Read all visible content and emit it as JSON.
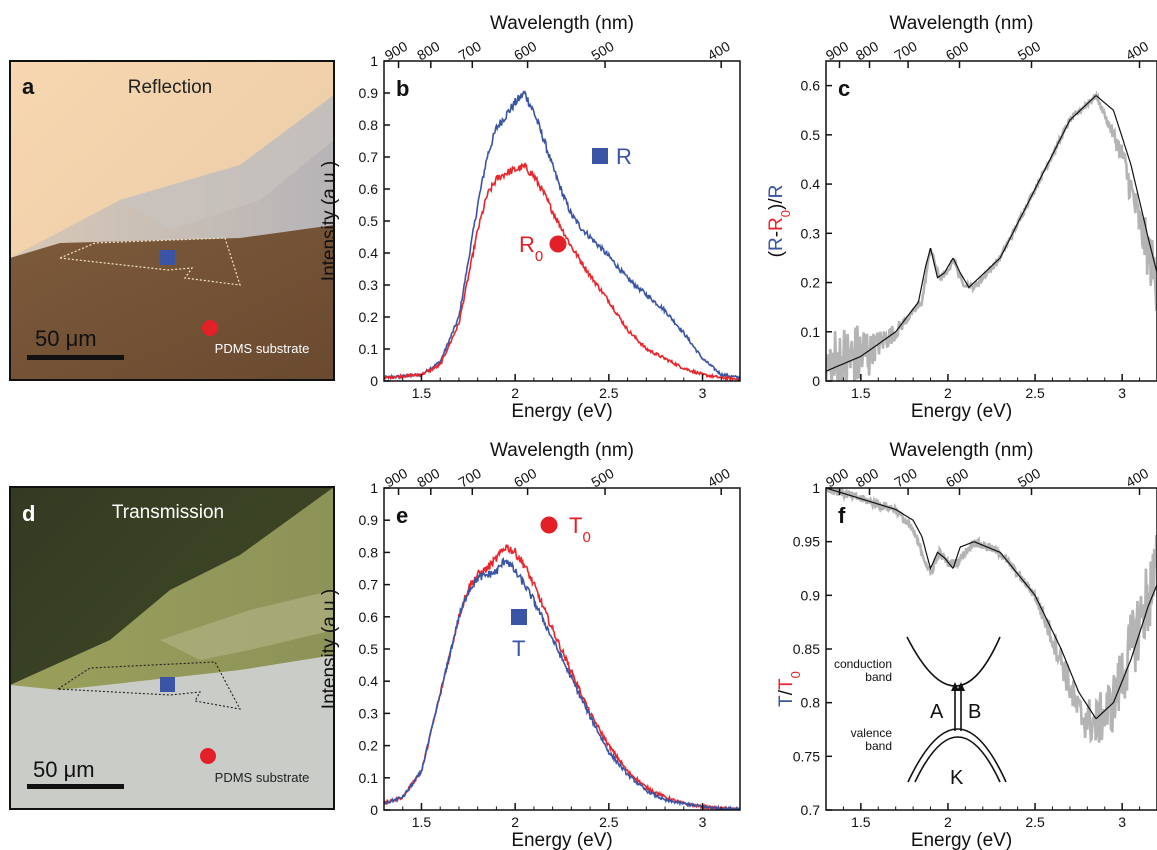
{
  "colors": {
    "blue": "#3a55a4",
    "red": "#e8262c",
    "gray": "#b4b4b4",
    "black": "#111111",
    "marker_blue": "#3b55a6",
    "marker_red": "#e32027"
  },
  "image_a": {
    "letter": "a",
    "title": "Reflection",
    "scale_label": "50 μm",
    "substrate_label": "PDMS substrate"
  },
  "image_d": {
    "letter": "d",
    "title": "Transmission",
    "scale_label": "50 μm",
    "substrate_label": "PDMS substrate"
  },
  "axis_text": {
    "top_label": "Wavelength (nm)",
    "bottom_label": "Energy (eV)",
    "intensity_label": "Intensity (a.u.)",
    "c_ylabel_parts": [
      "(",
      "R",
      "-",
      "R",
      "0",
      ")",
      "/",
      "R"
    ],
    "f_ylabel_parts": [
      "T",
      "/",
      "T",
      "0"
    ]
  },
  "inset_f": {
    "conduction": "conduction",
    "conduction2": "band",
    "valence": "valence",
    "valence2": "band",
    "A": "A",
    "B": "B",
    "K": "K"
  },
  "chart_data": [
    {
      "panel": "b",
      "type": "line",
      "xlabel": "Energy (eV)",
      "x2label": "Wavelength (nm)",
      "ylabel": "Intensity (a.u.)",
      "xlim": [
        1.3,
        3.2
      ],
      "ylim": [
        0,
        1
      ],
      "xticks": [
        1.5,
        2,
        2.5,
        3
      ],
      "yticks": [
        0,
        0.1,
        0.2,
        0.3,
        0.4,
        0.5,
        0.6,
        0.7,
        0.8,
        0.9,
        1
      ],
      "top_ticks": [
        "900",
        "800",
        "700",
        "600",
        "500",
        "400"
      ],
      "annotations": [
        {
          "text": "R",
          "marker": "square",
          "color": "#3b55a6"
        },
        {
          "text": "R",
          "sub": "0",
          "marker": "circle",
          "color": "#e32027"
        }
      ],
      "series": [
        {
          "color": "#3a55a4",
          "x": [
            1.3,
            1.5,
            1.6,
            1.7,
            1.8,
            1.85,
            1.9,
            1.95,
            2.0,
            2.05,
            2.1,
            2.15,
            2.2,
            2.25,
            2.3,
            2.35,
            2.4,
            2.5,
            2.6,
            2.7,
            2.8,
            2.9,
            3.0,
            3.1,
            3.2
          ],
          "y": [
            0.01,
            0.02,
            0.06,
            0.2,
            0.55,
            0.7,
            0.79,
            0.83,
            0.87,
            0.9,
            0.84,
            0.76,
            0.67,
            0.59,
            0.52,
            0.48,
            0.45,
            0.39,
            0.32,
            0.27,
            0.22,
            0.15,
            0.07,
            0.02,
            0.01
          ]
        },
        {
          "color": "#e8262c",
          "x": [
            1.3,
            1.5,
            1.6,
            1.7,
            1.8,
            1.85,
            1.9,
            1.95,
            2.0,
            2.05,
            2.1,
            2.15,
            2.2,
            2.3,
            2.4,
            2.5,
            2.6,
            2.7,
            2.8,
            2.9,
            3.0,
            3.1,
            3.2
          ],
          "y": [
            0.01,
            0.02,
            0.05,
            0.18,
            0.47,
            0.58,
            0.63,
            0.65,
            0.66,
            0.67,
            0.64,
            0.59,
            0.53,
            0.42,
            0.33,
            0.25,
            0.16,
            0.1,
            0.07,
            0.04,
            0.02,
            0.01,
            0.005
          ]
        }
      ]
    },
    {
      "panel": "c",
      "type": "line",
      "xlabel": "Energy (eV)",
      "x2label": "Wavelength (nm)",
      "ylabel": "(R-R0)/R",
      "xlim": [
        1.3,
        3.2
      ],
      "ylim": [
        0,
        0.65
      ],
      "xticks": [
        1.5,
        2,
        2.5,
        3
      ],
      "yticks": [
        0,
        0.1,
        0.2,
        0.3,
        0.4,
        0.5,
        0.6
      ],
      "top_ticks": [
        "900",
        "800",
        "700",
        "600",
        "500",
        "400"
      ],
      "series": [
        {
          "color": "#b4b4b4",
          "noise": "decreasing-then-increasing",
          "x": [
            1.3,
            1.5,
            1.7,
            1.85,
            1.9,
            1.95,
            2.0,
            2.03,
            2.08,
            2.15,
            2.3,
            2.5,
            2.7,
            2.85,
            3.0,
            3.1,
            3.2
          ],
          "y": [
            0.02,
            0.05,
            0.1,
            0.16,
            0.27,
            0.21,
            0.22,
            0.25,
            0.2,
            0.19,
            0.25,
            0.39,
            0.53,
            0.58,
            0.46,
            0.32,
            0.2
          ]
        },
        {
          "color": "#111111",
          "x": [
            1.3,
            1.5,
            1.7,
            1.83,
            1.87,
            1.9,
            1.94,
            1.98,
            2.03,
            2.07,
            2.12,
            2.3,
            2.5,
            2.7,
            2.85,
            2.95,
            3.05,
            3.15,
            3.2
          ],
          "y": [
            0.02,
            0.05,
            0.1,
            0.16,
            0.23,
            0.27,
            0.21,
            0.22,
            0.25,
            0.22,
            0.19,
            0.25,
            0.39,
            0.53,
            0.58,
            0.55,
            0.44,
            0.29,
            0.22
          ]
        }
      ]
    },
    {
      "panel": "e",
      "type": "line",
      "xlabel": "Energy (eV)",
      "x2label": "Wavelength (nm)",
      "ylabel": "Intensity (a.u.)",
      "xlim": [
        1.3,
        3.2
      ],
      "ylim": [
        0,
        1
      ],
      "xticks": [
        1.5,
        2,
        2.5,
        3
      ],
      "yticks": [
        0,
        0.1,
        0.2,
        0.3,
        0.4,
        0.5,
        0.6,
        0.7,
        0.8,
        0.9,
        1
      ],
      "top_ticks": [
        "900",
        "800",
        "700",
        "600",
        "500",
        "400"
      ],
      "annotations": [
        {
          "text": "T",
          "sub": "0",
          "marker": "circle",
          "color": "#e32027"
        },
        {
          "text": "T",
          "marker": "square",
          "color": "#3b55a6"
        }
      ],
      "series": [
        {
          "color": "#e8262c",
          "x": [
            1.3,
            1.4,
            1.5,
            1.6,
            1.7,
            1.75,
            1.8,
            1.85,
            1.9,
            1.95,
            2.0,
            2.05,
            2.1,
            2.2,
            2.3,
            2.4,
            2.5,
            2.6,
            2.7,
            2.8,
            2.9,
            3.0,
            3.1,
            3.2
          ],
          "y": [
            0.02,
            0.04,
            0.12,
            0.36,
            0.6,
            0.69,
            0.73,
            0.75,
            0.78,
            0.82,
            0.8,
            0.76,
            0.7,
            0.56,
            0.43,
            0.3,
            0.2,
            0.12,
            0.07,
            0.04,
            0.02,
            0.01,
            0.005,
            0.003
          ]
        },
        {
          "color": "#3a55a4",
          "x": [
            1.3,
            1.4,
            1.5,
            1.6,
            1.7,
            1.75,
            1.8,
            1.85,
            1.9,
            1.95,
            2.0,
            2.05,
            2.1,
            2.2,
            2.3,
            2.4,
            2.5,
            2.6,
            2.7,
            2.8,
            2.9,
            3.0,
            3.1,
            3.2
          ],
          "y": [
            0.02,
            0.04,
            0.12,
            0.36,
            0.6,
            0.68,
            0.72,
            0.73,
            0.74,
            0.78,
            0.74,
            0.7,
            0.65,
            0.53,
            0.41,
            0.29,
            0.18,
            0.11,
            0.06,
            0.03,
            0.02,
            0.01,
            0.005,
            0.003
          ]
        }
      ]
    },
    {
      "panel": "f",
      "type": "line",
      "xlabel": "Energy (eV)",
      "x2label": "Wavelength (nm)",
      "ylabel": "T/T0",
      "xlim": [
        1.3,
        3.2
      ],
      "ylim": [
        0.7,
        1
      ],
      "xticks": [
        1.5,
        2,
        2.5,
        3
      ],
      "yticks": [
        0.7,
        0.75,
        0.8,
        0.85,
        0.9,
        0.95,
        1
      ],
      "ytick_labels": [
        "0.7",
        "0.75",
        "0.8",
        "0.85",
        "0.9",
        "0.95",
        "1"
      ],
      "top_ticks": [
        "900",
        "800",
        "700",
        "600",
        "500",
        "400"
      ],
      "series": [
        {
          "color": "#b4b4b4",
          "noise": "increasing-at-high-energy",
          "x": [
            1.3,
            1.5,
            1.7,
            1.8,
            1.85,
            1.9,
            1.95,
            2.0,
            2.05,
            2.15,
            2.3,
            2.5,
            2.65,
            2.75,
            2.85,
            2.95,
            3.05,
            3.15,
            3.2
          ],
          "y": [
            1.0,
            0.99,
            0.98,
            0.96,
            0.94,
            0.92,
            0.94,
            0.93,
            0.93,
            0.95,
            0.94,
            0.9,
            0.84,
            0.79,
            0.78,
            0.8,
            0.85,
            0.9,
            0.92
          ]
        },
        {
          "color": "#111111",
          "x": [
            1.3,
            1.5,
            1.7,
            1.8,
            1.85,
            1.9,
            1.94,
            1.98,
            2.03,
            2.07,
            2.15,
            2.3,
            2.5,
            2.65,
            2.75,
            2.85,
            2.95,
            3.05,
            3.15,
            3.2
          ],
          "y": [
            1.0,
            0.99,
            0.98,
            0.97,
            0.955,
            0.925,
            0.94,
            0.935,
            0.925,
            0.945,
            0.95,
            0.94,
            0.9,
            0.85,
            0.81,
            0.785,
            0.8,
            0.84,
            0.89,
            0.91
          ]
        }
      ]
    }
  ]
}
